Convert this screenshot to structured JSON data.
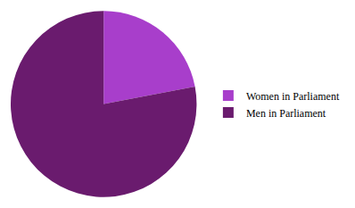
{
  "chart_data": {
    "type": "pie",
    "categories": [
      "Women in Parliament",
      "Men in Parliament"
    ],
    "values": [
      22,
      78
    ],
    "colors": [
      "#a83ecb",
      "#6a1b6e"
    ],
    "legend": "right",
    "data_labels": false
  }
}
